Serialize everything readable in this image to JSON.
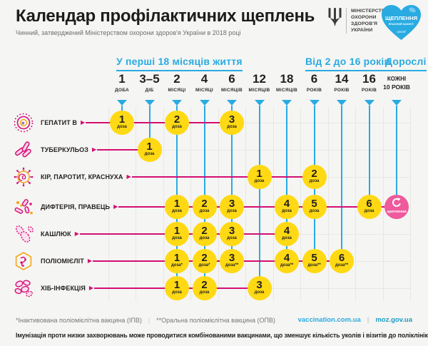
{
  "header": {
    "title": "Календар профілактичних щеплень",
    "subtitle": "Чинний, затверджений Міністерством охорони здоров'я України в 2018 році",
    "ministry": [
      "МІНІСТЕРСТВО",
      "ОХОРОНИ",
      "ЗДОРОВ'Я",
      "УКРАЇНИ"
    ],
    "heart": {
      "title": "ЩЕПЛЕННЯ",
      "subtitle": "ВЧАСНИЙ ЗАХИСТ",
      "brand": "unicef"
    }
  },
  "timeline": {
    "groups": [
      {
        "label": "У перші 18 місяців життя",
        "from": 0,
        "to": 6
      },
      {
        "label": "Від 2 до 16 років",
        "from": 7,
        "to": 9
      },
      {
        "label": "Дорослі",
        "from": 10,
        "to": 10
      }
    ],
    "columns": [
      {
        "age": "1",
        "unit": "ДОБА"
      },
      {
        "age": "3–5",
        "unit": "ДІБ"
      },
      {
        "age": "2",
        "unit": "МІСЯЦІ"
      },
      {
        "age": "4",
        "unit": "МІСЯЦІ"
      },
      {
        "age": "6",
        "unit": "МІСЯЦІВ"
      },
      {
        "age": "12",
        "unit": "МІСЯЦІВ"
      },
      {
        "age": "18",
        "unit": "МІСЯЦІВ"
      },
      {
        "age": "6",
        "unit": "РОКІВ"
      },
      {
        "age": "14",
        "unit": "РОКІВ"
      },
      {
        "age": "16",
        "unit": "РОКІВ"
      },
      {
        "age": "КОЖНІ",
        "unit": "10 РОКІВ",
        "adult": true
      }
    ]
  },
  "rows": [
    {
      "disease": "ГЕПАТИТ В",
      "icon": "hepatitis-b-virus-icon",
      "doses": [
        {
          "col": 0,
          "num": "1",
          "label": "доза"
        },
        {
          "col": 2,
          "num": "2",
          "label": "доза"
        },
        {
          "col": 4,
          "num": "3",
          "label": "доза"
        }
      ]
    },
    {
      "disease": "ТУБЕРКУЛЬОЗ",
      "icon": "tuberculosis-bacteria-icon",
      "doses": [
        {
          "col": 1,
          "num": "1",
          "label": "доза"
        }
      ]
    },
    {
      "disease": "КІР, ПАРОТИТ, КРАСНУХА",
      "icon": "measles-virus-icon",
      "doses": [
        {
          "col": 5,
          "num": "1",
          "label": "доза"
        },
        {
          "col": 7,
          "num": "2",
          "label": "доза"
        }
      ]
    },
    {
      "disease": "ДИФТЕРІЯ, ПРАВЕЦЬ",
      "icon": "diphtheria-bacteria-icon",
      "doses": [
        {
          "col": 2,
          "num": "1",
          "label": "доза"
        },
        {
          "col": 3,
          "num": "2",
          "label": "доза"
        },
        {
          "col": 4,
          "num": "3",
          "label": "доза"
        },
        {
          "col": 6,
          "num": "4",
          "label": "доза"
        },
        {
          "col": 7,
          "num": "5",
          "label": "доза"
        },
        {
          "col": 9,
          "num": "6",
          "label": "доза"
        },
        {
          "col": 10,
          "type": "revaccination",
          "label": "щеплення"
        }
      ]
    },
    {
      "disease": "КАШЛЮК",
      "icon": "pertussis-bacteria-icon",
      "doses": [
        {
          "col": 2,
          "num": "1",
          "label": "доза"
        },
        {
          "col": 3,
          "num": "2",
          "label": "доза"
        },
        {
          "col": 4,
          "num": "3",
          "label": "доза"
        },
        {
          "col": 6,
          "num": "4",
          "label": "доза"
        }
      ]
    },
    {
      "disease": "ПОЛІОМІЄЛІТ",
      "icon": "polio-virus-icon",
      "doses": [
        {
          "col": 2,
          "num": "1",
          "label": "доза*"
        },
        {
          "col": 3,
          "num": "2",
          "label": "доза*"
        },
        {
          "col": 4,
          "num": "3",
          "label": "доза**"
        },
        {
          "col": 6,
          "num": "4",
          "label": "доза**"
        },
        {
          "col": 7,
          "num": "5",
          "label": "доза**"
        },
        {
          "col": 8,
          "num": "6",
          "label": "доза**"
        }
      ]
    },
    {
      "disease": "ХІБ-ІНФЕКЦІЯ",
      "icon": "hib-bacteria-icon",
      "doses": [
        {
          "col": 2,
          "num": "1",
          "label": "доза"
        },
        {
          "col": 3,
          "num": "2",
          "label": "доза"
        },
        {
          "col": 5,
          "num": "3",
          "label": "доза"
        }
      ]
    }
  ],
  "footer": {
    "footnote1": "*Інактивована поліомієлітна вакцина (ІПВ)",
    "footnote2": "**Оральна поліомієлітна вакцина (ОПВ)",
    "link1": "vaccination.com.ua",
    "link2": "moz.gov.ua",
    "note": "Імунізація проти низки захворювань може проводитися комбінованими вакцинами, що зменшує кількість уколів і візитів до поліклінік."
  },
  "colors": {
    "cyan": "#29abe2",
    "magenta": "#d40e74",
    "yellow": "#ffd913",
    "pink": "#ee5a9c",
    "dark": "#231f20"
  }
}
